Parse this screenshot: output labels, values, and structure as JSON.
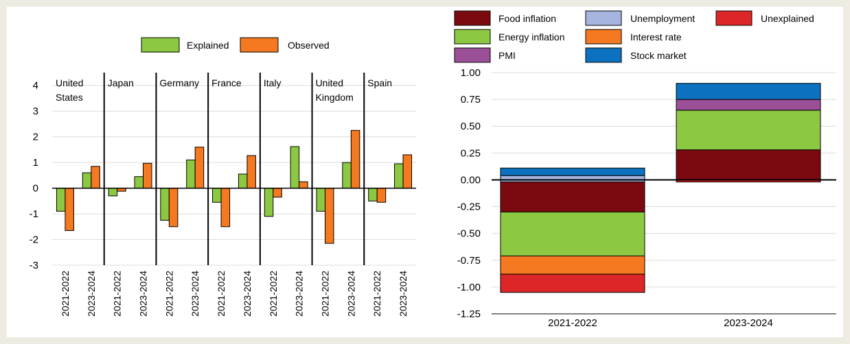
{
  "chart_data": [
    {
      "type": "bar",
      "categories": [
        "2021-2022",
        "2023-2024"
      ],
      "groups": [
        "United States",
        "Japan",
        "Germany",
        "France",
        "Italy",
        "United Kingdom",
        "Spain"
      ],
      "group_label_lines": [
        [
          "United",
          "States"
        ],
        [
          "Japan"
        ],
        [
          "Germany"
        ],
        [
          "France"
        ],
        [
          "Italy"
        ],
        [
          "United",
          "Kingdom"
        ],
        [
          "Spain"
        ]
      ],
      "series": [
        {
          "name": "Explained",
          "color": "#8cc841",
          "values": [
            [
              -0.9,
              0.6
            ],
            [
              -0.3,
              0.45
            ],
            [
              -1.25,
              1.1
            ],
            [
              -0.55,
              0.55
            ],
            [
              -1.1,
              1.62
            ],
            [
              -0.9,
              1.0
            ],
            [
              -0.5,
              0.95
            ]
          ]
        },
        {
          "name": "Observed",
          "color": "#f47920",
          "values": [
            [
              -1.65,
              0.85
            ],
            [
              -0.12,
              0.97
            ],
            [
              -1.5,
              1.6
            ],
            [
              -1.5,
              1.27
            ],
            [
              -0.35,
              0.25
            ],
            [
              -2.15,
              2.25
            ],
            [
              -0.55,
              1.3
            ]
          ]
        }
      ],
      "ylim": [
        -3,
        4.5
      ],
      "yticks": [
        -3,
        -2,
        -1,
        0,
        1,
        2,
        3,
        4
      ],
      "ytick_labels": [
        "-3",
        "-2",
        "-1",
        "0",
        "1",
        "2",
        "3",
        "4"
      ],
      "legend_position": "top-center",
      "grid": true
    },
    {
      "type": "stacked_bar",
      "categories": [
        "2021-2022",
        "2023-2024"
      ],
      "series": [
        {
          "name": "Food inflation",
          "color": "#7b0a10",
          "values": [
            -0.3,
            0.28
          ]
        },
        {
          "name": "Energy inflation",
          "color": "#8cc841",
          "values": [
            -0.41,
            0.37
          ]
        },
        {
          "name": "PMI",
          "color": "#9b4f96",
          "values": [
            0.0,
            0.1
          ]
        },
        {
          "name": "Unemployment",
          "color": "#a6b5df",
          "values": [
            0.04,
            0.0
          ]
        },
        {
          "name": "Interest rate",
          "color": "#f47920",
          "values": [
            -0.17,
            0.0
          ]
        },
        {
          "name": "Stock market",
          "color": "#0c72c0",
          "values": [
            0.07,
            0.15
          ]
        },
        {
          "name": "Unexplained",
          "color": "#dc2627",
          "values": [
            -0.17,
            -0.02
          ]
        }
      ],
      "extra_negative_segments": [
        {
          "category": "2021-2022",
          "series": "Unemployment",
          "value": -0.02
        }
      ],
      "ylim": [
        -1.25,
        1.0
      ],
      "yticks": [
        -1.25,
        -1.0,
        -0.75,
        -0.5,
        -0.25,
        0.0,
        0.25,
        0.5,
        0.75,
        1.0
      ],
      "ytick_labels": [
        "-1.25",
        "-1.00",
        "-0.75",
        "-0.50",
        "-0.25",
        "0.00",
        "0.25",
        "0.50",
        "0.75",
        "1.00"
      ],
      "legend_position": "top",
      "grid": true
    }
  ]
}
